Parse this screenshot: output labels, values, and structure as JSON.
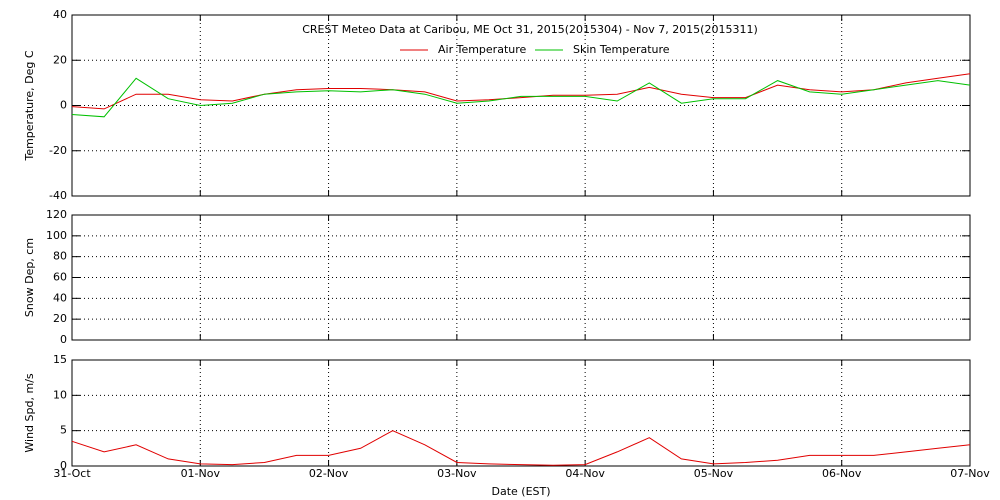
{
  "chart_data": [
    {
      "type": "line",
      "title": "CREST Meteo Data at Caribou, ME   Oct 31, 2015(2015304) - Nov  7, 2015(2015311)",
      "y_label": "Temperature, Deg C",
      "legend": "top-center",
      "grid": true,
      "xlim": [
        0,
        7
      ],
      "ylim": [
        -40,
        40
      ],
      "yticks": [
        40,
        20,
        0,
        -20,
        -40
      ],
      "x": [
        0,
        0.25,
        0.5,
        0.75,
        1,
        1.25,
        1.5,
        1.75,
        2,
        2.25,
        2.5,
        2.75,
        3,
        3.25,
        3.5,
        3.75,
        4,
        4.25,
        4.5,
        4.75,
        5,
        5.25,
        5.5,
        5.75,
        6,
        6.25,
        6.5,
        6.75,
        7
      ],
      "series": [
        {
          "name": "Air Temperature",
          "color": "#e00000",
          "values": [
            -0.5,
            -1.5,
            5,
            5,
            2.5,
            2,
            5,
            7,
            7.5,
            7.5,
            7,
            6,
            2,
            2.5,
            3.5,
            4.5,
            4.5,
            5,
            8,
            5,
            3.5,
            3.5,
            9,
            7,
            6,
            7,
            10,
            12,
            14
          ]
        },
        {
          "name": "Skin Temperature",
          "color": "#00c000",
          "values": [
            -4,
            -5,
            12,
            3,
            0,
            1,
            5,
            6,
            6.5,
            6,
            7,
            5,
            1,
            2,
            4,
            4,
            4,
            2,
            10,
            1,
            3,
            3,
            11,
            6,
            5,
            7,
            9,
            11,
            9
          ]
        }
      ]
    },
    {
      "type": "line",
      "y_label": "Snow Dep, cm",
      "grid": true,
      "xlim": [
        0,
        7
      ],
      "ylim": [
        0,
        120
      ],
      "yticks": [
        0,
        20,
        40,
        60,
        80,
        100,
        120
      ]
    },
    {
      "type": "line",
      "y_label": "Wind Spd, m/s",
      "x_label": "Date (EST)",
      "grid": true,
      "color": "#e00000",
      "xlim": [
        0,
        7
      ],
      "ylim": [
        0,
        15
      ],
      "yticks": [
        0,
        5,
        10,
        15
      ],
      "xticks": [
        {
          "value": 0,
          "label": "31-Oct"
        },
        {
          "value": 1,
          "label": "01-Nov"
        },
        {
          "value": 2,
          "label": "02-Nov"
        },
        {
          "value": 3,
          "label": "03-Nov"
        },
        {
          "value": 4,
          "label": "04-Nov"
        },
        {
          "value": 5,
          "label": "05-Nov"
        },
        {
          "value": 6,
          "label": "06-Nov"
        },
        {
          "value": 7,
          "label": "07-Nov"
        }
      ],
      "x": [
        0,
        0.25,
        0.5,
        0.75,
        1,
        1.25,
        1.5,
        1.75,
        2,
        2.25,
        2.5,
        2.75,
        3,
        3.25,
        3.5,
        3.75,
        4,
        4.25,
        4.5,
        4.75,
        5,
        5.25,
        5.5,
        5.75,
        6,
        6.25,
        6.5,
        6.75,
        7
      ],
      "values": [
        3.5,
        2,
        3,
        1,
        0.3,
        0.2,
        0.5,
        1.5,
        1.5,
        2.5,
        5,
        3,
        0.5,
        0.3,
        0.2,
        0.1,
        0.2,
        2,
        4,
        1,
        0.3,
        0.5,
        0.8,
        1.5,
        1.5,
        1.5,
        2,
        2.5,
        3
      ]
    }
  ]
}
